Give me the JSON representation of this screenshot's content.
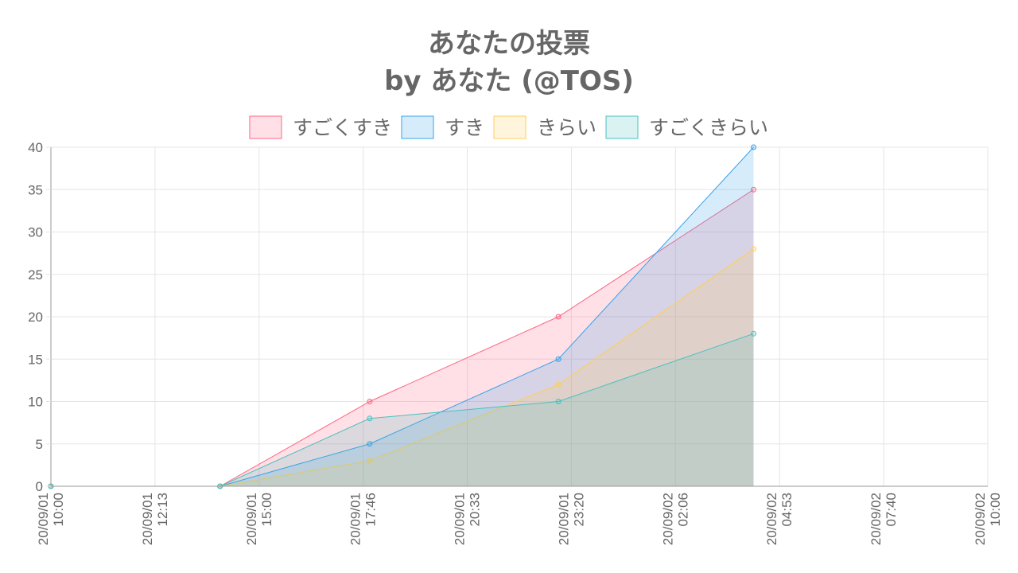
{
  "chart_data": {
    "type": "area",
    "title": [
      "あなたの投票",
      "by あなた (@TOS)"
    ],
    "xlabel": "",
    "ylabel": "",
    "ylim": [
      0,
      40
    ],
    "yticks": [
      0,
      5,
      10,
      15,
      20,
      25,
      30,
      35,
      40
    ],
    "xlim": [
      "2020-09-01 10:00",
      "2020-09-02 10:00"
    ],
    "xticks": [
      {
        "date": "20/09/01",
        "time": "10:00"
      },
      {
        "date": "20/09/01",
        "time": "12:13"
      },
      {
        "date": "20/09/01",
        "time": "15:00"
      },
      {
        "date": "20/09/01",
        "time": "17:46"
      },
      {
        "date": "20/09/01",
        "time": "20:33"
      },
      {
        "date": "20/09/01",
        "time": "23:20"
      },
      {
        "date": "20/09/02",
        "time": "02:06"
      },
      {
        "date": "20/09/02",
        "time": "04:53"
      },
      {
        "date": "20/09/02",
        "time": "07:40"
      },
      {
        "date": "20/09/02",
        "time": "10:00"
      }
    ],
    "grid": true,
    "legend_position": "top",
    "series": [
      {
        "name": "すごくすき",
        "border_color": "#ff6384",
        "fill_color": "#ff6384",
        "points": [
          {
            "x": "2020-09-01 10:00",
            "y": 0
          },
          {
            "x": "2020-09-01 14:20",
            "y": 0
          },
          {
            "x": "2020-09-01 18:10",
            "y": 10
          },
          {
            "x": "2020-09-01 23:00",
            "y": 20
          },
          {
            "x": "2020-09-02 04:00",
            "y": 35
          }
        ]
      },
      {
        "name": "すき",
        "border_color": "#36a2eb",
        "fill_color": "#36a2eb",
        "points": [
          {
            "x": "2020-09-01 10:00",
            "y": 0
          },
          {
            "x": "2020-09-01 14:20",
            "y": 0
          },
          {
            "x": "2020-09-01 18:10",
            "y": 5
          },
          {
            "x": "2020-09-01 23:00",
            "y": 15
          },
          {
            "x": "2020-09-02 04:00",
            "y": 40
          }
        ]
      },
      {
        "name": "きらい",
        "border_color": "#ffcd56",
        "fill_color": "#ffcd56",
        "points": [
          {
            "x": "2020-09-01 10:00",
            "y": 0
          },
          {
            "x": "2020-09-01 14:20",
            "y": 0
          },
          {
            "x": "2020-09-01 18:10",
            "y": 3
          },
          {
            "x": "2020-09-01 23:00",
            "y": 12
          },
          {
            "x": "2020-09-02 04:00",
            "y": 28
          }
        ]
      },
      {
        "name": "すごくきらい",
        "border_color": "#4bc0c0",
        "fill_color": "#4bc0c0",
        "points": [
          {
            "x": "2020-09-01 10:00",
            "y": 0
          },
          {
            "x": "2020-09-01 14:20",
            "y": 0
          },
          {
            "x": "2020-09-01 18:10",
            "y": 8
          },
          {
            "x": "2020-09-01 23:00",
            "y": 10
          },
          {
            "x": "2020-09-02 04:00",
            "y": 18
          }
        ]
      }
    ]
  }
}
